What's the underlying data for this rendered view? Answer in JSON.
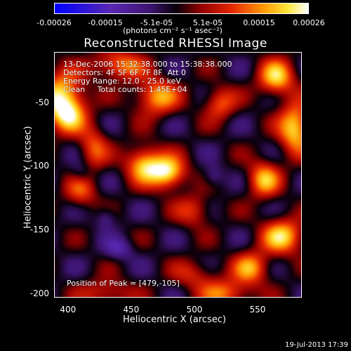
{
  "colorbar": {
    "ticks": [
      "-0.00026",
      "-0.00015",
      "-5.1e-05",
      "5.1e-05",
      "0.00015",
      "0.00026"
    ],
    "units": "(photons cm⁻² s⁻¹ asec⁻²)"
  },
  "title": "Reconstructed RHESSI Image",
  "info": {
    "line1": "13-Dec-2006 15:32:38.000 to 15:38:38.000",
    "line2": "Detectors: 4F 5F 6F 7F 8F  Att 0",
    "line3": "Energy Range: 12.0 - 25.0 keV",
    "line4": "Clean     Total counts: 1.45E+04"
  },
  "peak_label": "Position of Peak = [479,-105]",
  "footer": "19-Jul-2013 17:39",
  "chart_data": {
    "type": "heatmap",
    "title": "Reconstructed RHESSI Image",
    "xlabel": "Heliocentric X (arcsec)",
    "ylabel": "Heliocentric Y (arcsec)",
    "xlim": [
      389,
      585
    ],
    "ylim": [
      -203,
      -10
    ],
    "x_ticks": [
      "400",
      "450",
      "500",
      "550"
    ],
    "y_ticks": [
      "-50",
      "-100",
      "-150",
      "-200"
    ],
    "colorbar_range": [
      -0.00026,
      0.00026
    ],
    "peak_position": [
      479,
      -105
    ],
    "sources": [
      {
        "x": 479,
        "y": -105,
        "value": 0.00026,
        "sx": 10,
        "sy": 9
      },
      {
        "x": 460,
        "y": -98,
        "value": 0.00022,
        "sx": 10,
        "sy": 10
      },
      {
        "x": 395,
        "y": -45,
        "value": 0.00024,
        "sx": 12,
        "sy": 14
      },
      {
        "x": 400,
        "y": -60,
        "value": 0.00016,
        "sx": 10,
        "sy": 10
      },
      {
        "x": 470,
        "y": -45,
        "value": 0.0002,
        "sx": 12,
        "sy": 10
      },
      {
        "x": 440,
        "y": -20,
        "value": 0.00018,
        "sx": 14,
        "sy": 8
      },
      {
        "x": 565,
        "y": -30,
        "value": 0.00022,
        "sx": 10,
        "sy": 10
      },
      {
        "x": 580,
        "y": -70,
        "value": 0.00024,
        "sx": 9,
        "sy": 14
      },
      {
        "x": 555,
        "y": -110,
        "value": 0.0002,
        "sx": 9,
        "sy": 10
      },
      {
        "x": 570,
        "y": -155,
        "value": 0.00022,
        "sx": 12,
        "sy": 10
      },
      {
        "x": 545,
        "y": -180,
        "value": 0.00018,
        "sx": 10,
        "sy": 9
      },
      {
        "x": 525,
        "y": -200,
        "value": 0.00016,
        "sx": 14,
        "sy": 8
      },
      {
        "x": 500,
        "y": -135,
        "value": 0.00012,
        "sx": 10,
        "sy": 9
      },
      {
        "x": 420,
        "y": -85,
        "value": 0.00014,
        "sx": 8,
        "sy": 12
      },
      {
        "x": 410,
        "y": -120,
        "value": 0.00013,
        "sx": 9,
        "sy": 9
      },
      {
        "x": 520,
        "y": -50,
        "value": 0.00015,
        "sx": 9,
        "sy": 9
      },
      {
        "x": 500,
        "y": -185,
        "value": 0.0001,
        "sx": 12,
        "sy": 8
      },
      {
        "x": 430,
        "y": -200,
        "value": 0.00012,
        "sx": 14,
        "sy": 8
      },
      {
        "x": 515,
        "y": -108,
        "value": -8e-05,
        "sx": 6,
        "sy": 6
      },
      {
        "x": 440,
        "y": -165,
        "value": -0.0001,
        "sx": 8,
        "sy": 6
      },
      {
        "x": 430,
        "y": -140,
        "value": -8e-05,
        "sx": 6,
        "sy": 6
      },
      {
        "x": 410,
        "y": -105,
        "value": -7e-05,
        "sx": 6,
        "sy": 6
      }
    ]
  }
}
